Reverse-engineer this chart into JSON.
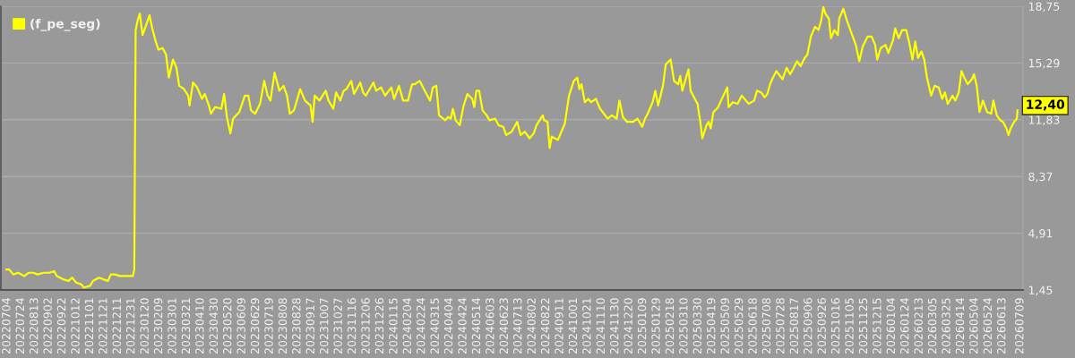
{
  "chart_data": {
    "type": "line",
    "series": [
      {
        "name": "(f_pe_seg)",
        "color": "#ffff00",
        "x": [
          "2022-07-03",
          "2022-07-07",
          "2022-07-13",
          "2022-07-20",
          "2022-07-29",
          "2022-08-04",
          "2022-08-11",
          "2022-08-17",
          "2022-08-26",
          "2022-09-03",
          "2022-09-10",
          "2022-09-14",
          "2022-09-23",
          "2022-10-01",
          "2022-10-06",
          "2022-10-12",
          "2022-10-19",
          "2022-10-23",
          "2022-11-01",
          "2022-11-05",
          "2022-11-14",
          "2022-11-20",
          "2022-11-27",
          "2022-12-01",
          "2022-12-07",
          "2022-12-14",
          "2023-01-02",
          "2023-01-04",
          "2023-01-06",
          "2023-01-09",
          "2023-01-12",
          "2023-01-16",
          "2023-01-22",
          "2023-01-26",
          "2023-01-30",
          "2023-02-04",
          "2023-02-08",
          "2023-02-14",
          "2023-02-19",
          "2023-02-23",
          "2023-03-01",
          "2023-03-06",
          "2023-03-10",
          "2023-03-17",
          "2023-03-23",
          "2023-03-25",
          "2023-03-30",
          "2023-04-05",
          "2023-04-12",
          "2023-04-16",
          "2023-04-22",
          "2023-04-25",
          "2023-05-01",
          "2023-05-10",
          "2023-05-14",
          "2023-05-18",
          "2023-05-23",
          "2023-05-27",
          "2023-06-05",
          "2023-06-13",
          "2023-06-18",
          "2023-06-22",
          "2023-06-28",
          "2023-07-05",
          "2023-07-11",
          "2023-07-16",
          "2023-07-20",
          "2023-07-26",
          "2023-08-02",
          "2023-08-08",
          "2023-08-13",
          "2023-08-17",
          "2023-08-23",
          "2023-08-28",
          "2023-09-01",
          "2023-09-08",
          "2023-09-16",
          "2023-09-19",
          "2023-09-22",
          "2023-09-29",
          "2023-10-08",
          "2023-10-12",
          "2023-10-19",
          "2023-10-23",
          "2023-10-29",
          "2023-11-03",
          "2023-11-07",
          "2023-11-14",
          "2023-11-18",
          "2023-11-27",
          "2023-12-01",
          "2023-12-05",
          "2023-12-16",
          "2023-12-20",
          "2023-12-27",
          "2024-01-02",
          "2024-01-11",
          "2024-01-15",
          "2024-01-22",
          "2024-01-28",
          "2024-02-04",
          "2024-02-10",
          "2024-02-14",
          "2024-02-21",
          "2024-02-27",
          "2024-03-07",
          "2024-03-11",
          "2024-03-16",
          "2024-03-18",
          "2024-03-20",
          "2024-03-29",
          "2024-04-02",
          "2024-04-06",
          "2024-04-09",
          "2024-04-13",
          "2024-04-19",
          "2024-04-24",
          "2024-04-30",
          "2024-05-07",
          "2024-05-10",
          "2024-05-13",
          "2024-05-17",
          "2024-05-22",
          "2024-05-28",
          "2024-06-01",
          "2024-06-09",
          "2024-06-14",
          "2024-06-21",
          "2024-06-25",
          "2024-07-03",
          "2024-07-11",
          "2024-07-16",
          "2024-07-22",
          "2024-07-29",
          "2024-08-04",
          "2024-08-08",
          "2024-08-17",
          "2024-08-19",
          "2024-08-24",
          "2024-08-27",
          "2024-08-30",
          "2024-09-08",
          "2024-09-12",
          "2024-09-18",
          "2024-09-24",
          "2024-10-01",
          "2024-10-06",
          "2024-10-09",
          "2024-10-12",
          "2024-10-17",
          "2024-10-22",
          "2024-10-26",
          "2024-11-02",
          "2024-11-08",
          "2024-11-19",
          "2024-11-25",
          "2024-12-02",
          "2024-12-06",
          "2024-12-11",
          "2024-12-17",
          "2024-12-26",
          "2025-01-01",
          "2025-01-08",
          "2025-01-12",
          "2025-01-16",
          "2025-01-23",
          "2025-01-27",
          "2025-01-31",
          "2025-02-07",
          "2025-02-11",
          "2025-02-18",
          "2025-02-23",
          "2025-03-01",
          "2025-03-04",
          "2025-03-07",
          "2025-03-11",
          "2025-03-16",
          "2025-03-19",
          "2025-03-24",
          "2025-03-29",
          "2025-04-02",
          "2025-04-05",
          "2025-04-11",
          "2025-04-14",
          "2025-04-17",
          "2025-04-21",
          "2025-04-28",
          "2025-05-02",
          "2025-05-11",
          "2025-05-13",
          "2025-05-19",
          "2025-05-26",
          "2025-06-01",
          "2025-06-11",
          "2025-06-19",
          "2025-06-23",
          "2025-06-29",
          "2025-07-04",
          "2025-07-08",
          "2025-07-12",
          "2025-07-15",
          "2025-07-21",
          "2025-07-30",
          "2025-08-05",
          "2025-08-10",
          "2025-08-14",
          "2025-08-20",
          "2025-08-25",
          "2025-08-31",
          "2025-09-04",
          "2025-09-09",
          "2025-09-15",
          "2025-09-20",
          "2025-09-24",
          "2025-09-27",
          "2025-09-30",
          "2025-10-05",
          "2025-10-08",
          "2025-10-13",
          "2025-10-18",
          "2025-10-20",
          "2025-10-26",
          "2025-10-31",
          "2025-11-06",
          "2025-11-13",
          "2025-11-18",
          "2025-11-23",
          "2025-11-30",
          "2025-12-06",
          "2025-12-11",
          "2025-12-14",
          "2025-12-19",
          "2025-12-26",
          "2025-12-30",
          "2026-01-06",
          "2026-01-09",
          "2026-01-14",
          "2026-01-19",
          "2026-01-25",
          "2026-01-29",
          "2026-02-03",
          "2026-02-07",
          "2026-02-11",
          "2026-02-16",
          "2026-02-20",
          "2026-02-24",
          "2026-03-02",
          "2026-03-07",
          "2026-03-13",
          "2026-03-18",
          "2026-03-22",
          "2026-03-26",
          "2026-04-02",
          "2026-04-06",
          "2026-04-11",
          "2026-04-15",
          "2026-04-19",
          "2026-04-24",
          "2026-04-30",
          "2026-05-03",
          "2026-05-07",
          "2026-05-11",
          "2026-05-16",
          "2026-05-22",
          "2026-05-28",
          "2026-05-31",
          "2026-06-05",
          "2026-06-10",
          "2026-06-14",
          "2026-06-19",
          "2026-06-22",
          "2026-06-25",
          "2026-06-30",
          "2026-07-04",
          "2026-07-05"
        ],
        "values": [
          2.7,
          2.7,
          2.4,
          2.5,
          2.3,
          2.5,
          2.5,
          2.4,
          2.5,
          2.5,
          2.6,
          2.3,
          2.1,
          2.0,
          2.2,
          1.9,
          1.8,
          1.6,
          1.7,
          2.0,
          2.2,
          2.1,
          2.0,
          2.4,
          2.4,
          2.3,
          2.3,
          2.7,
          17.3,
          17.9,
          18.3,
          17.0,
          17.7,
          18.2,
          17.4,
          16.6,
          16.1,
          16.2,
          15.8,
          14.4,
          15.5,
          15.0,
          13.9,
          13.7,
          13.3,
          12.7,
          14.1,
          13.8,
          13.1,
          13.4,
          12.7,
          12.2,
          12.6,
          12.5,
          13.4,
          12.0,
          11.0,
          11.9,
          12.3,
          13.3,
          13.3,
          12.4,
          12.2,
          12.8,
          14.2,
          13.3,
          13.0,
          14.7,
          13.6,
          13.9,
          13.3,
          12.2,
          12.4,
          13.1,
          13.7,
          13.0,
          12.7,
          11.7,
          13.3,
          13.0,
          13.6,
          13.0,
          12.5,
          13.5,
          13.0,
          13.6,
          13.7,
          14.2,
          13.4,
          14.1,
          13.5,
          13.3,
          14.1,
          13.6,
          13.8,
          13.3,
          13.8,
          13.1,
          13.9,
          13.0,
          13.0,
          14.0,
          14.0,
          14.2,
          13.7,
          13.0,
          13.8,
          13.9,
          13.0,
          12.1,
          11.8,
          12.0,
          11.9,
          12.5,
          11.8,
          11.5,
          12.6,
          13.4,
          13.1,
          12.6,
          13.6,
          13.6,
          12.4,
          12.1,
          11.8,
          11.9,
          11.5,
          11.4,
          10.9,
          11.1,
          11.7,
          10.9,
          11.1,
          10.7,
          11.0,
          11.5,
          12.1,
          11.8,
          11.7,
          10.1,
          10.8,
          10.6,
          11.0,
          11.6,
          13.3,
          14.2,
          14.4,
          13.7,
          14.0,
          12.9,
          13.1,
          12.9,
          13.1,
          12.5,
          11.9,
          12.1,
          11.9,
          13.0,
          12.0,
          11.7,
          11.7,
          11.9,
          11.4,
          11.9,
          12.2,
          12.9,
          13.6,
          12.7,
          13.9,
          15.2,
          15.5,
          14.2,
          14.0,
          14.5,
          13.6,
          14.2,
          14.9,
          13.6,
          13.2,
          12.8,
          11.7,
          10.7,
          11.5,
          11.7,
          11.3,
          12.3,
          12.6,
          13.0,
          13.8,
          12.6,
          12.9,
          12.8,
          13.3,
          12.8,
          13.0,
          13.6,
          13.5,
          13.2,
          13.4,
          14.0,
          14.3,
          14.8,
          14.3,
          15.0,
          14.6,
          14.9,
          15.4,
          15.1,
          15.6,
          15.8,
          16.9,
          17.5,
          17.3,
          17.9,
          18.7,
          18.3,
          18.0,
          16.8,
          17.3,
          17.0,
          18.0,
          18.6,
          17.9,
          17.2,
          16.4,
          15.4,
          16.3,
          16.9,
          16.9,
          16.4,
          15.5,
          16.2,
          16.4,
          15.9,
          16.7,
          17.4,
          16.8,
          17.3,
          17.3,
          16.6,
          15.5,
          16.6,
          15.6,
          16.0,
          15.5,
          14.4,
          13.3,
          13.9,
          13.8,
          13.1,
          13.5,
          12.8,
          13.3,
          13.0,
          13.5,
          14.8,
          14.4,
          14.0,
          14.3,
          14.6,
          13.9,
          12.3,
          13.0,
          12.3,
          12.2,
          13.0,
          12.1,
          11.8,
          11.7,
          11.3,
          10.9,
          11.3,
          11.7,
          11.9,
          12.4
        ]
      }
    ],
    "xlim": [
      "2022-06-25",
      "2026-07-13"
    ],
    "xticks": [
      {
        "value": "2022-07-04",
        "label": "20220704"
      },
      {
        "value": "2022-07-24",
        "label": "20220724"
      },
      {
        "value": "2022-08-13",
        "label": "20220813"
      },
      {
        "value": "2022-09-02",
        "label": "20220902"
      },
      {
        "value": "2022-09-22",
        "label": "20220922"
      },
      {
        "value": "2022-10-12",
        "label": "20221012"
      },
      {
        "value": "2022-11-01",
        "label": "20221101"
      },
      {
        "value": "2022-11-21",
        "label": "20221121"
      },
      {
        "value": "2022-12-11",
        "label": "20221211"
      },
      {
        "value": "2022-12-31",
        "label": "20221231"
      },
      {
        "value": "2023-01-20",
        "label": "20230120"
      },
      {
        "value": "2023-02-09",
        "label": "20230209"
      },
      {
        "value": "2023-03-01",
        "label": "20230301"
      },
      {
        "value": "2023-03-21",
        "label": "20230321"
      },
      {
        "value": "2023-04-10",
        "label": "20230410"
      },
      {
        "value": "2023-04-30",
        "label": "20230430"
      },
      {
        "value": "2023-05-20",
        "label": "20230520"
      },
      {
        "value": "2023-06-09",
        "label": "20230609"
      },
      {
        "value": "2023-06-29",
        "label": "20230629"
      },
      {
        "value": "2023-07-19",
        "label": "20230719"
      },
      {
        "value": "2023-08-08",
        "label": "20230808"
      },
      {
        "value": "2023-08-28",
        "label": "20230828"
      },
      {
        "value": "2023-09-17",
        "label": "20230917"
      },
      {
        "value": "2023-10-07",
        "label": "20231007"
      },
      {
        "value": "2023-10-27",
        "label": "20231027"
      },
      {
        "value": "2023-11-16",
        "label": "20231116"
      },
      {
        "value": "2023-12-06",
        "label": "20231206"
      },
      {
        "value": "2023-12-26",
        "label": "20231226"
      },
      {
        "value": "2024-01-15",
        "label": "20240115"
      },
      {
        "value": "2024-02-04",
        "label": "20240204"
      },
      {
        "value": "2024-02-24",
        "label": "20240224"
      },
      {
        "value": "2024-03-15",
        "label": "20240315"
      },
      {
        "value": "2024-04-04",
        "label": "20240404"
      },
      {
        "value": "2024-04-24",
        "label": "20240424"
      },
      {
        "value": "2024-05-14",
        "label": "20240514"
      },
      {
        "value": "2024-06-03",
        "label": "20240603"
      },
      {
        "value": "2024-06-23",
        "label": "20240623"
      },
      {
        "value": "2024-07-13",
        "label": "20240713"
      },
      {
        "value": "2024-08-02",
        "label": "20240802"
      },
      {
        "value": "2024-08-22",
        "label": "20240822"
      },
      {
        "value": "2024-09-11",
        "label": "20240911"
      },
      {
        "value": "2024-10-01",
        "label": "20241001"
      },
      {
        "value": "2024-10-21",
        "label": "20241021"
      },
      {
        "value": "2024-11-10",
        "label": "20241110"
      },
      {
        "value": "2024-11-30",
        "label": "20241130"
      },
      {
        "value": "2024-12-20",
        "label": "20241220"
      },
      {
        "value": "2025-01-09",
        "label": "20250109"
      },
      {
        "value": "2025-01-29",
        "label": "20250129"
      },
      {
        "value": "2025-02-18",
        "label": "20250218"
      },
      {
        "value": "2025-03-10",
        "label": "20250310"
      },
      {
        "value": "2025-03-30",
        "label": "20250330"
      },
      {
        "value": "2025-04-19",
        "label": "20250419"
      },
      {
        "value": "2025-05-09",
        "label": "20250509"
      },
      {
        "value": "2025-05-29",
        "label": "20250529"
      },
      {
        "value": "2025-06-18",
        "label": "20250618"
      },
      {
        "value": "2025-07-08",
        "label": "20250708"
      },
      {
        "value": "2025-07-28",
        "label": "20250728"
      },
      {
        "value": "2025-08-17",
        "label": "20250817"
      },
      {
        "value": "2025-09-06",
        "label": "20250906"
      },
      {
        "value": "2025-09-26",
        "label": "20250926"
      },
      {
        "value": "2025-10-16",
        "label": "20251016"
      },
      {
        "value": "2025-11-05",
        "label": "20251105"
      },
      {
        "value": "2025-11-25",
        "label": "20251125"
      },
      {
        "value": "2025-12-15",
        "label": "20251215"
      },
      {
        "value": "2026-01-04",
        "label": "20260104"
      },
      {
        "value": "2026-01-24",
        "label": "20260124"
      },
      {
        "value": "2026-02-13",
        "label": "20260213"
      },
      {
        "value": "2026-03-05",
        "label": "20260305"
      },
      {
        "value": "2026-03-25",
        "label": "20260325"
      },
      {
        "value": "2026-04-14",
        "label": "20260414"
      },
      {
        "value": "2026-05-04",
        "label": "20260504"
      },
      {
        "value": "2026-05-24",
        "label": "20260524"
      },
      {
        "value": "2026-06-13",
        "label": "20260613"
      },
      {
        "value": "2026-07-09",
        "label": "20260709"
      }
    ],
    "ylim": [
      1.45,
      18.75
    ],
    "yticks": [
      {
        "value": 1.45,
        "label": "1,45"
      },
      {
        "value": 4.91,
        "label": "4,91"
      },
      {
        "value": 8.37,
        "label": "8,37"
      },
      {
        "value": 11.83,
        "label": "11,83"
      },
      {
        "value": 15.29,
        "label": "15,29"
      },
      {
        "value": 18.75,
        "label": "18,75"
      }
    ],
    "annotations": [
      {
        "text": "12,40",
        "x": "2026-07-05",
        "y": 12.4
      }
    ],
    "grid": "y",
    "legend": "top left"
  }
}
